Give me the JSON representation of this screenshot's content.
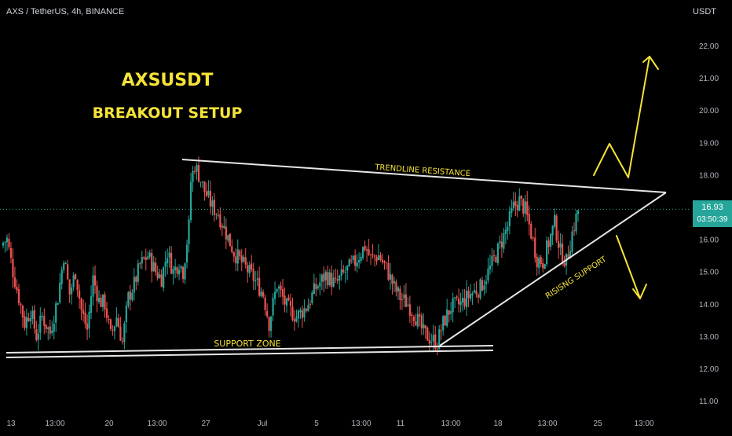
{
  "header": {
    "symbol_line": "AXS / TetherUS, 4h, BINANCE",
    "currency": "USDT"
  },
  "price_tag": {
    "price": "16.93",
    "countdown": "03:50:39"
  },
  "colors": {
    "bull": "#26a69a",
    "bear": "#ef5350",
    "annotation": "#f5e339",
    "line": "#e6e6e6",
    "axis_text": "#b2b5be"
  },
  "chart_data": {
    "type": "candlestick",
    "title": "AXSUSDT",
    "subtitle": "BREAKOUT SETUP",
    "y_axis": {
      "ticks": [
        "22.00",
        "21.00",
        "20.00",
        "19.00",
        "18.00",
        "17.00",
        "16.00",
        "15.00",
        "14.00",
        "13.00",
        "12.00",
        "11.00"
      ],
      "range": [
        10.6,
        23.0
      ]
    },
    "x_axis": {
      "ticks": [
        "13",
        "13:00",
        "20",
        "13:00",
        "27",
        "Jul",
        "5",
        "13:00",
        "11",
        "13:00",
        "18",
        "13:00",
        "25",
        "13:00"
      ]
    },
    "last_price": 16.93,
    "price_path": [
      [
        0,
        15.9
      ],
      [
        2,
        16.0
      ],
      [
        5,
        15.0
      ],
      [
        8,
        14.2
      ],
      [
        11,
        13.4
      ],
      [
        14,
        13.8
      ],
      [
        17,
        13.0
      ],
      [
        20,
        13.6
      ],
      [
        24,
        13.1
      ],
      [
        28,
        14.2
      ],
      [
        31,
        15.5
      ],
      [
        34,
        14.3
      ],
      [
        37,
        15.0
      ],
      [
        40,
        13.8
      ],
      [
        43,
        13.2
      ],
      [
        46,
        14.8
      ],
      [
        49,
        14.1
      ],
      [
        52,
        14.0
      ],
      [
        55,
        13.0
      ],
      [
        58,
        13.6
      ],
      [
        61,
        12.8
      ],
      [
        64,
        14.2
      ],
      [
        67,
        14.6
      ],
      [
        70,
        15.2
      ],
      [
        74,
        15.5
      ],
      [
        78,
        15.0
      ],
      [
        81,
        14.8
      ],
      [
        84,
        15.6
      ],
      [
        87,
        15.0
      ],
      [
        90,
        15.3
      ],
      [
        92,
        15.0
      ],
      [
        95,
        16.4
      ],
      [
        96,
        17.8
      ],
      [
        98,
        18.3
      ],
      [
        100,
        18.0
      ],
      [
        103,
        17.5
      ],
      [
        107,
        17.0
      ],
      [
        110,
        16.8
      ],
      [
        114,
        16.2
      ],
      [
        118,
        15.6
      ],
      [
        123,
        15.2
      ],
      [
        128,
        14.8
      ],
      [
        133,
        14.3
      ],
      [
        136,
        13.4
      ],
      [
        140,
        14.6
      ],
      [
        145,
        13.9
      ],
      [
        150,
        13.6
      ],
      [
        155,
        13.9
      ],
      [
        160,
        14.5
      ],
      [
        165,
        14.9
      ],
      [
        170,
        14.6
      ],
      [
        175,
        15.0
      ],
      [
        180,
        15.3
      ],
      [
        185,
        15.8
      ],
      [
        188,
        15.4
      ],
      [
        192,
        15.5
      ],
      [
        196,
        15.1
      ],
      [
        200,
        14.5
      ],
      [
        203,
        14.2
      ],
      [
        207,
        14.0
      ],
      [
        211,
        13.6
      ],
      [
        215,
        13.1
      ],
      [
        219,
        12.9
      ],
      [
        222,
        12.8
      ],
      [
        225,
        13.4
      ],
      [
        229,
        13.9
      ],
      [
        234,
        14.0
      ],
      [
        239,
        14.3
      ],
      [
        244,
        14.5
      ],
      [
        249,
        15.1
      ],
      [
        254,
        15.8
      ],
      [
        258,
        16.4
      ],
      [
        261,
        17.0
      ],
      [
        264,
        17.2
      ],
      [
        267,
        16.9
      ],
      [
        270,
        16.2
      ],
      [
        273,
        15.4
      ],
      [
        276,
        15.3
      ],
      [
        279,
        15.9
      ],
      [
        282,
        16.5
      ],
      [
        285,
        15.6
      ],
      [
        288,
        15.3
      ],
      [
        291,
        16.2
      ],
      [
        294,
        16.9
      ]
    ],
    "annotations": {
      "resistance_label": "TRENDLINE RESISTANCE",
      "support_label": "RISISNG SUPPORT",
      "zone_label": "SUPPORT ZONE"
    }
  }
}
